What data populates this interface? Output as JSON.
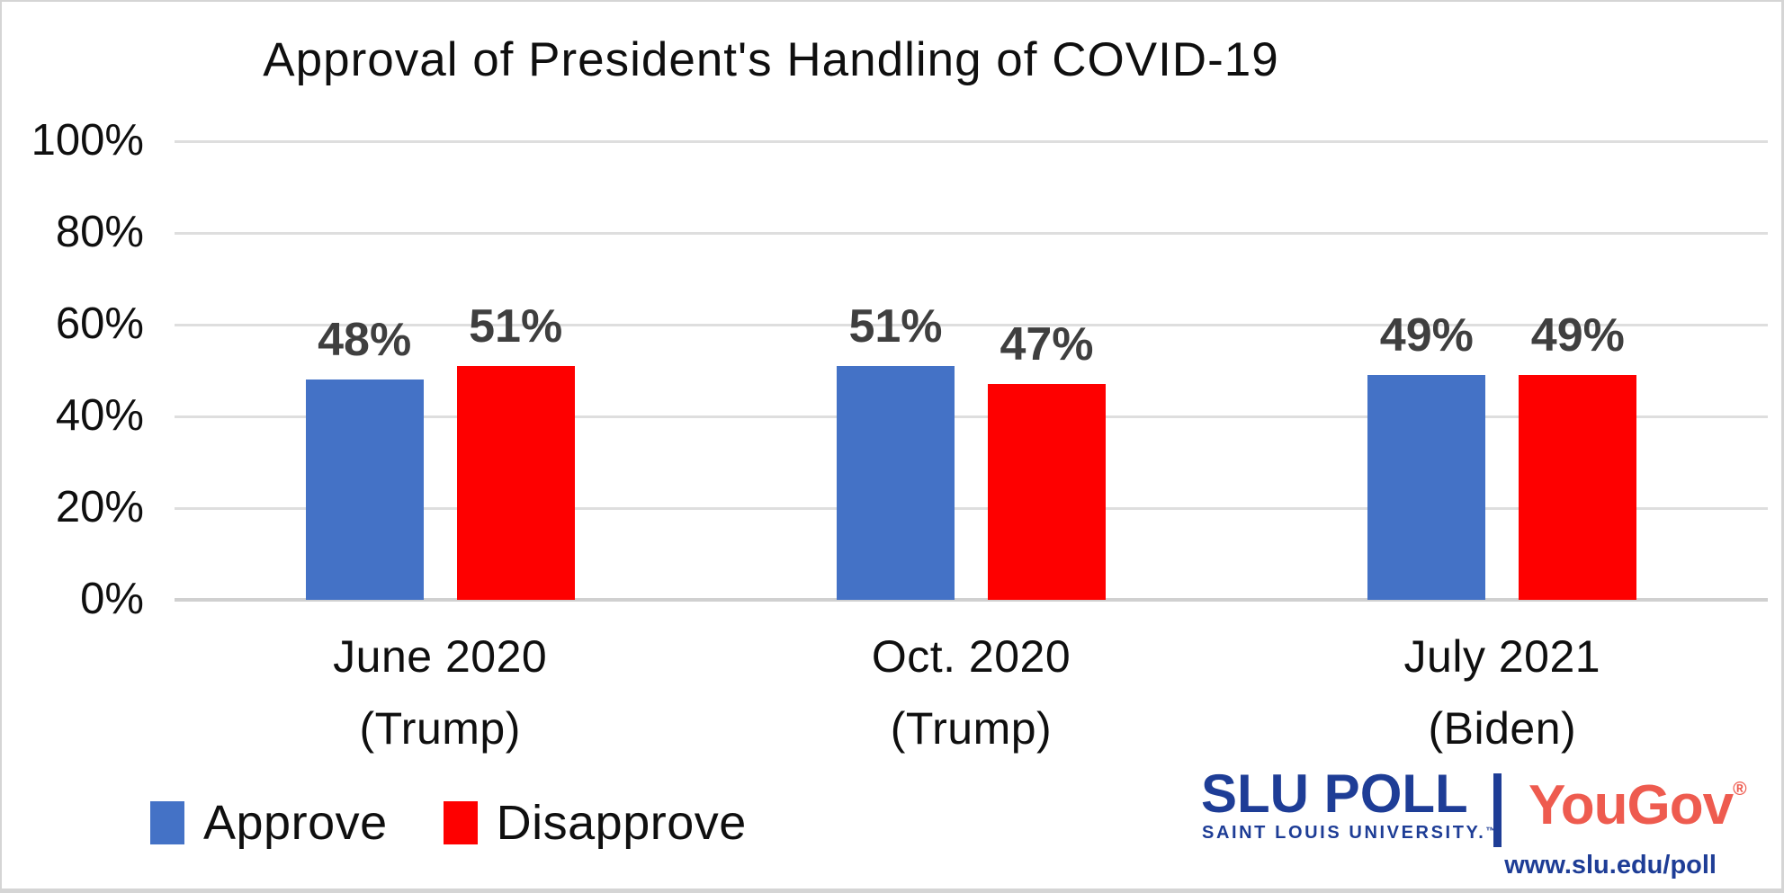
{
  "chart_data": {
    "type": "bar",
    "title": "Approval of President's Handling of COVID-19",
    "categories": [
      {
        "line1": "June 2020",
        "line2": "(Trump)"
      },
      {
        "line1": "Oct. 2020",
        "line2": "(Trump)"
      },
      {
        "line1": "July 2021",
        "line2": "(Biden)"
      }
    ],
    "series": [
      {
        "name": "Approve",
        "color": "#4472C6",
        "values": [
          48,
          51,
          49
        ],
        "labels": [
          "48%",
          "51%",
          "49%"
        ]
      },
      {
        "name": "Disapprove",
        "color": "#FE0000",
        "values": [
          51,
          47,
          49
        ],
        "labels": [
          "51%",
          "47%",
          "49%"
        ]
      }
    ],
    "y_axis": {
      "ticks": [
        {
          "label": "100%",
          "value": 100
        },
        {
          "label": "80%",
          "value": 80
        },
        {
          "label": "60%",
          "value": 60
        },
        {
          "label": "40%",
          "value": 40
        },
        {
          "label": "20%",
          "value": 20
        },
        {
          "label": "0%",
          "value": 0
        }
      ],
      "range": [
        0,
        100
      ]
    },
    "grid": true,
    "legend_position": "bottom-left",
    "value_label_color": "#3F3F3F",
    "gridline_color": "#DEDEDE"
  },
  "footer": {
    "slu_poll_wordmark_strong": "SLU",
    "slu_poll_wordmark_rest": " POLL",
    "slu_subtitle": "SAINT LOUIS UNIVERSITY.",
    "slu_trademark": "™",
    "yougov_wordmark": "YouGov",
    "registered_mark": "®",
    "url": "www.slu.edu/poll",
    "slu_blue": "#1E3D96",
    "yougov_red": "#EE5B4F"
  }
}
